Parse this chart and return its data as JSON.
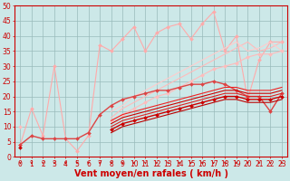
{
  "x": [
    0,
    1,
    2,
    3,
    4,
    5,
    6,
    7,
    8,
    9,
    10,
    11,
    12,
    13,
    14,
    15,
    16,
    17,
    18,
    19,
    20,
    21,
    22,
    23
  ],
  "series": [
    {
      "color": "#ffaaaa",
      "linewidth": 0.8,
      "marker": "D",
      "markersize": 2.0,
      "y": [
        4,
        16,
        7,
        30,
        6,
        2,
        7,
        37,
        35,
        39,
        43,
        35,
        41,
        43,
        44,
        39,
        44,
        48,
        35,
        40,
        19,
        32,
        38,
        38
      ]
    },
    {
      "color": "#ffbbbb",
      "linewidth": 0.8,
      "marker": null,
      "markersize": 0,
      "y": [
        10,
        null,
        null,
        null,
        null,
        null,
        null,
        null,
        13,
        16,
        18,
        20,
        22,
        24,
        26,
        28,
        30,
        32,
        34,
        36,
        38,
        35,
        36,
        38
      ]
    },
    {
      "color": "#ffcccc",
      "linewidth": 0.8,
      "marker": null,
      "markersize": 0,
      "y": [
        10,
        null,
        null,
        null,
        null,
        null,
        null,
        null,
        15,
        17,
        20,
        22,
        24,
        26,
        28,
        30,
        32,
        34,
        36,
        38,
        35,
        36,
        38,
        35
      ]
    },
    {
      "color": "#ffbbbb",
      "linewidth": 0.8,
      "marker": "D",
      "markersize": 2.0,
      "y": [
        10,
        null,
        null,
        null,
        null,
        null,
        null,
        null,
        12,
        14,
        16,
        18,
        20,
        21,
        23,
        25,
        27,
        29,
        30,
        31,
        33,
        34,
        34,
        35
      ]
    },
    {
      "color": "#dd4444",
      "linewidth": 1.0,
      "marker": "D",
      "markersize": 2.0,
      "y": [
        4,
        7,
        6,
        6,
        6,
        6,
        8,
        14,
        17,
        19,
        20,
        21,
        22,
        22,
        23,
        24,
        24,
        25,
        24,
        22,
        20,
        20,
        15,
        21
      ]
    },
    {
      "color": "#cc0000",
      "linewidth": 0.8,
      "marker": null,
      "markersize": 0,
      "y": [
        3,
        null,
        null,
        null,
        null,
        null,
        null,
        null,
        11,
        13,
        14,
        15,
        16,
        17,
        18,
        19,
        20,
        21,
        22,
        22,
        21,
        21,
        21,
        22
      ]
    },
    {
      "color": "#ee2222",
      "linewidth": 0.8,
      "marker": null,
      "markersize": 0,
      "y": [
        3,
        null,
        null,
        null,
        null,
        null,
        null,
        null,
        12,
        14,
        15,
        16,
        17,
        18,
        19,
        20,
        21,
        22,
        23,
        23,
        22,
        22,
        22,
        23
      ]
    },
    {
      "color": "#cc0000",
      "linewidth": 1.0,
      "marker": "D",
      "markersize": 2.0,
      "y": [
        3,
        null,
        null,
        null,
        null,
        null,
        null,
        null,
        9,
        11,
        12,
        13,
        14,
        15,
        16,
        17,
        18,
        19,
        20,
        20,
        19,
        19,
        19,
        20
      ]
    },
    {
      "color": "#bb0000",
      "linewidth": 0.8,
      "marker": null,
      "markersize": 0,
      "y": [
        3,
        null,
        null,
        null,
        null,
        null,
        null,
        null,
        8,
        10,
        11,
        12,
        13,
        14,
        15,
        16,
        17,
        18,
        19,
        19,
        18,
        18,
        18,
        19
      ]
    },
    {
      "color": "#dd2222",
      "linewidth": 0.8,
      "marker": null,
      "markersize": 0,
      "y": [
        3,
        null,
        null,
        null,
        null,
        null,
        null,
        null,
        10,
        12,
        13,
        14,
        15,
        16,
        17,
        18,
        19,
        20,
        21,
        21,
        20,
        20,
        20,
        21
      ]
    }
  ],
  "xlabel": "Vent moyen/en rafales ( km/h )",
  "xlim": [
    -0.5,
    23.5
  ],
  "ylim": [
    0,
    50
  ],
  "xticks": [
    0,
    1,
    2,
    3,
    4,
    5,
    6,
    7,
    8,
    9,
    10,
    11,
    12,
    13,
    14,
    15,
    16,
    17,
    18,
    19,
    20,
    21,
    22,
    23
  ],
  "yticks": [
    0,
    5,
    10,
    15,
    20,
    25,
    30,
    35,
    40,
    45,
    50
  ],
  "grid_color": "#99bbbb",
  "bg_color": "#cce8e8",
  "tick_color": "#cc0000",
  "xlabel_color": "#cc0000",
  "xlabel_fontsize": 7,
  "tick_fontsize": 5.5
}
